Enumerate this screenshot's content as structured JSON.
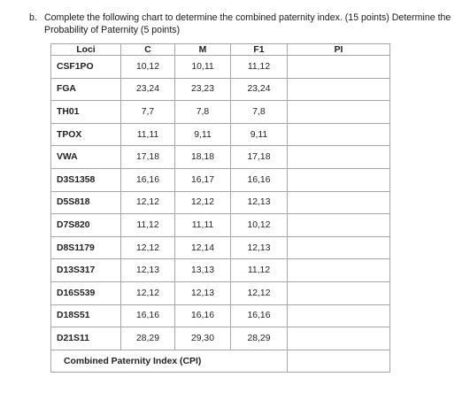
{
  "question": {
    "number": "b.",
    "text": "Complete the following chart to determine the combined paternity index. (15 points) Determine the Probability of Paternity (5 points)"
  },
  "table": {
    "headers": [
      "Loci",
      "C",
      "M",
      "F1",
      "PI"
    ],
    "rows": [
      {
        "locus": "CSF1PO",
        "c": "10,12",
        "m": "10,11",
        "f1": "11,12",
        "pi": ""
      },
      {
        "locus": "FGA",
        "c": "23,24",
        "m": "23,23",
        "f1": "23,24",
        "pi": ""
      },
      {
        "locus": "TH01",
        "c": "7,7",
        "m": "7,8",
        "f1": "7,8",
        "pi": ""
      },
      {
        "locus": "TPOX",
        "c": "11,11",
        "m": "9,11",
        "f1": "9,11",
        "pi": ""
      },
      {
        "locus": "VWA",
        "c": "17,18",
        "m": "18,18",
        "f1": "17,18",
        "pi": ""
      },
      {
        "locus": "D3S1358",
        "c": "16,16",
        "m": "16,17",
        "f1": "16,16",
        "pi": ""
      },
      {
        "locus": "D5S818",
        "c": "12,12",
        "m": "12,12",
        "f1": "12,13",
        "pi": ""
      },
      {
        "locus": "D7S820",
        "c": "11,12",
        "m": "11,11",
        "f1": "10,12",
        "pi": ""
      },
      {
        "locus": "D8S1179",
        "c": "12,12",
        "m": "12,14",
        "f1": "12,13",
        "pi": ""
      },
      {
        "locus": "D13S317",
        "c": "12,13",
        "m": "13,13",
        "f1": "11,12",
        "pi": ""
      },
      {
        "locus": "D16S539",
        "c": "12,12",
        "m": "12,13",
        "f1": "12,12",
        "pi": ""
      },
      {
        "locus": "D18S51",
        "c": "16,16",
        "m": "16,16",
        "f1": "16,16",
        "pi": ""
      },
      {
        "locus": "D21S11",
        "c": "28,29",
        "m": "29,30",
        "f1": "28,29",
        "pi": ""
      }
    ],
    "cpi_label": "Combined Paternity Index (CPI)",
    "cpi_value": ""
  }
}
